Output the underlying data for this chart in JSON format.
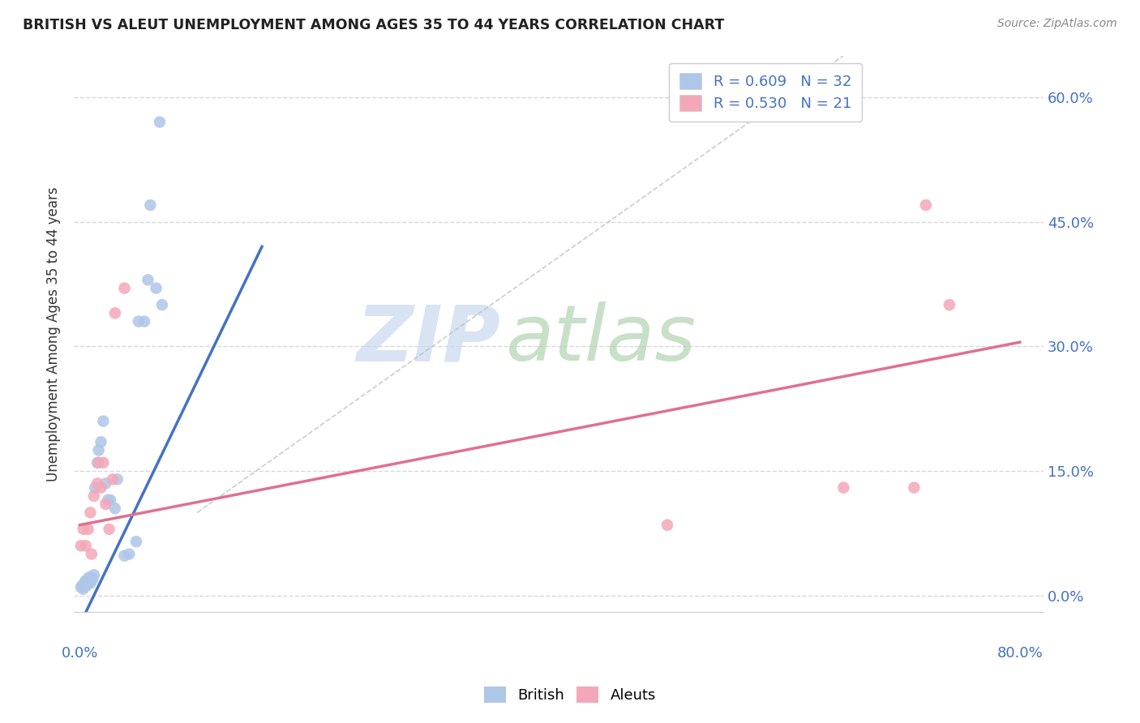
{
  "title": "BRITISH VS ALEUT UNEMPLOYMENT AMONG AGES 35 TO 44 YEARS CORRELATION CHART",
  "source": "Source: ZipAtlas.com",
  "ylabel": "Unemployment Among Ages 35 to 44 years",
  "ytick_values": [
    0.0,
    0.15,
    0.3,
    0.45,
    0.6
  ],
  "ytick_labels": [
    "0.0%",
    "15.0%",
    "30.0%",
    "45.0%",
    "60.0%"
  ],
  "xlim": [
    -0.005,
    0.82
  ],
  "ylim": [
    -0.02,
    0.65
  ],
  "legend_R_blue": "R = 0.609",
  "legend_N_blue": "N = 32",
  "legend_R_pink": "R = 0.530",
  "legend_N_pink": "N = 21",
  "british_color": "#aec6e8",
  "aleut_color": "#f4a7b9",
  "british_line_color": "#4472c4",
  "aleut_line_color": "#e07090",
  "ref_line_color": "#c0c0c0",
  "grid_color": "#d8d8d8",
  "british_x": [
    0.001,
    0.002,
    0.003,
    0.004,
    0.005,
    0.006,
    0.007,
    0.008,
    0.009,
    0.01,
    0.011,
    0.012,
    0.013,
    0.015,
    0.016,
    0.018,
    0.02,
    0.022,
    0.024,
    0.026,
    0.03,
    0.032,
    0.038,
    0.042,
    0.048,
    0.05,
    0.055,
    0.058,
    0.06,
    0.065,
    0.068,
    0.07
  ],
  "british_y": [
    0.01,
    0.012,
    0.008,
    0.015,
    0.018,
    0.012,
    0.02,
    0.022,
    0.015,
    0.018,
    0.02,
    0.025,
    0.13,
    0.16,
    0.175,
    0.185,
    0.21,
    0.135,
    0.115,
    0.115,
    0.105,
    0.14,
    0.048,
    0.05,
    0.065,
    0.33,
    0.33,
    0.38,
    0.47,
    0.37,
    0.57,
    0.35
  ],
  "aleut_x": [
    0.001,
    0.003,
    0.005,
    0.007,
    0.009,
    0.01,
    0.012,
    0.015,
    0.016,
    0.018,
    0.02,
    0.022,
    0.025,
    0.028,
    0.03,
    0.038,
    0.5,
    0.65,
    0.71,
    0.72,
    0.74
  ],
  "aleut_y": [
    0.06,
    0.08,
    0.06,
    0.08,
    0.1,
    0.05,
    0.12,
    0.135,
    0.16,
    0.13,
    0.16,
    0.11,
    0.08,
    0.14,
    0.34,
    0.37,
    0.085,
    0.13,
    0.13,
    0.47,
    0.35
  ],
  "blue_line_x": [
    0.0,
    0.155
  ],
  "blue_line_y": [
    -0.035,
    0.42
  ],
  "pink_line_x": [
    0.0,
    0.8
  ],
  "pink_line_y": [
    0.085,
    0.305
  ],
  "ref_line_x": [
    0.1,
    0.65
  ],
  "ref_line_y": [
    0.1,
    0.65
  ],
  "marker_size": 110,
  "watermark_zip_color": "#c8d8f0",
  "watermark_atlas_color": "#b0d4b0"
}
